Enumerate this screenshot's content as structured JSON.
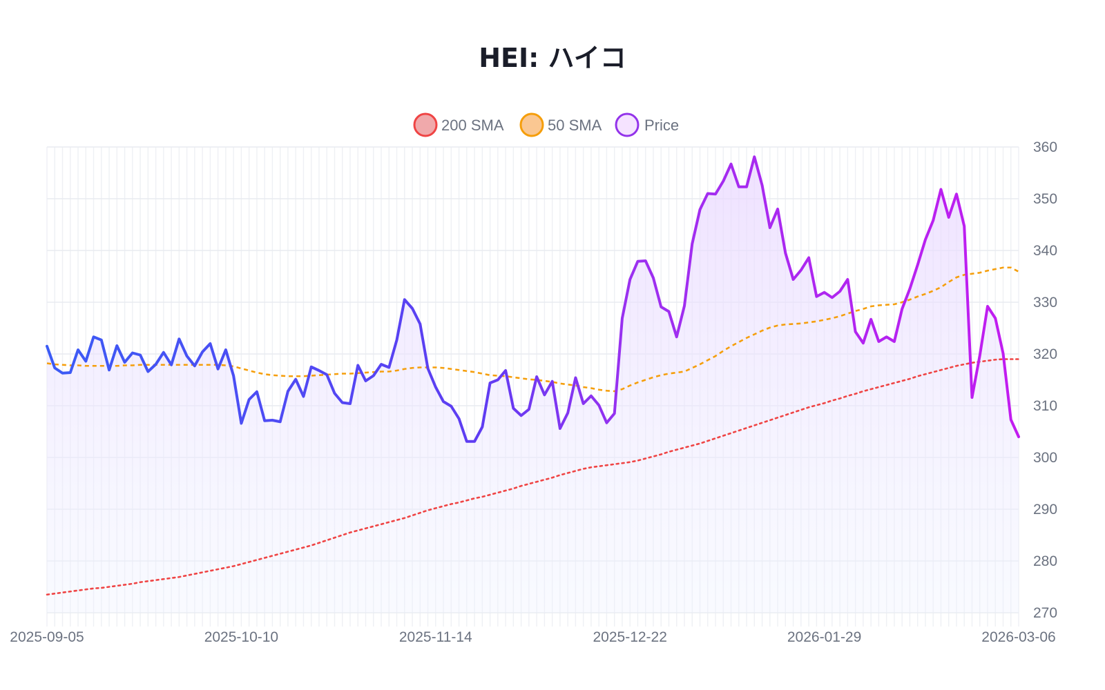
{
  "chart_data": {
    "type": "line",
    "title": "HEI: ハイコ",
    "xlabel": "",
    "ylabel": "",
    "ylim": [
      270,
      360
    ],
    "y_ticks": [
      270,
      280,
      290,
      300,
      310,
      320,
      330,
      340,
      350,
      360
    ],
    "x_tick_labels": [
      "2025-09-05",
      "2025-10-10",
      "2025-11-14",
      "2025-12-22",
      "2026-01-29",
      "2026-03-06"
    ],
    "grid": true,
    "legend_position": "top-center",
    "legend": [
      {
        "label": "200 SMA",
        "color": "#ef4444"
      },
      {
        "label": "50 SMA",
        "color": "#f59e0b"
      },
      {
        "label": "Price",
        "color": "#9333ea"
      }
    ],
    "series": [
      {
        "name": "Price",
        "color_start": "#3b5bf5",
        "color_end": "#c21cf0",
        "values": [
          321.5,
          317.3,
          316.3,
          316.4,
          320.8,
          318.6,
          323.3,
          322.7,
          316.9,
          321.6,
          318.4,
          320.2,
          319.8,
          316.6,
          318.0,
          320.3,
          317.9,
          322.9,
          319.6,
          317.7,
          320.4,
          322.0,
          317.1,
          320.8,
          315.8,
          306.6,
          311.2,
          312.7,
          307.1,
          307.2,
          306.9,
          312.8,
          315.1,
          311.8,
          317.5,
          316.8,
          316.0,
          312.4,
          310.6,
          310.4,
          317.8,
          314.8,
          315.8,
          318.0,
          317.4,
          322.7,
          330.5,
          328.8,
          325.8,
          317.2,
          313.6,
          310.8,
          309.9,
          307.5,
          303.1,
          303.1,
          305.9,
          314.4,
          315.0,
          316.8,
          309.5,
          308.1,
          309.3,
          315.6,
          312.1,
          314.7,
          305.6,
          308.6,
          315.4,
          310.4,
          311.9,
          310.1,
          306.7,
          308.5,
          326.9,
          334.4,
          337.9,
          338.0,
          334.7,
          329.1,
          328.2,
          323.3,
          329.3,
          341.3,
          347.9,
          351.0,
          350.9,
          353.4,
          356.7,
          352.3,
          352.3,
          358.1,
          352.6,
          344.4,
          348.0,
          339.5,
          334.4,
          336.2,
          338.6,
          331.1,
          331.9,
          330.9,
          332.1,
          334.4,
          324.3,
          322.1,
          326.7,
          322.4,
          323.3,
          322.4,
          328.7,
          332.6,
          337.2,
          342.1,
          345.8,
          351.8,
          346.4,
          350.9,
          344.7,
          311.6,
          319.7,
          329.2,
          326.9,
          320.1,
          307.3,
          304.0
        ]
      },
      {
        "name": "50 SMA",
        "color": "#f59e0b",
        "values": [
          318.2,
          318.0,
          317.9,
          317.8,
          317.8,
          317.7,
          317.7,
          317.7,
          317.7,
          317.7,
          317.8,
          317.8,
          317.9,
          317.9,
          317.9,
          317.9,
          317.9,
          317.9,
          317.9,
          317.9,
          317.9,
          317.9,
          317.9,
          317.8,
          317.6,
          317.2,
          316.8,
          316.4,
          316.1,
          315.9,
          315.8,
          315.7,
          315.7,
          315.7,
          315.8,
          315.9,
          316.0,
          316.1,
          316.2,
          316.2,
          316.3,
          316.4,
          316.5,
          316.6,
          316.6,
          316.8,
          317.1,
          317.3,
          317.4,
          317.4,
          317.4,
          317.3,
          317.1,
          316.9,
          316.7,
          316.5,
          316.2,
          315.9,
          315.8,
          315.7,
          315.5,
          315.3,
          315.1,
          315.0,
          314.8,
          314.6,
          314.3,
          314.1,
          313.9,
          313.6,
          313.4,
          313.1,
          312.9,
          312.8,
          313.2,
          313.9,
          314.5,
          315.0,
          315.5,
          315.9,
          316.2,
          316.4,
          316.6,
          317.3,
          318.0,
          318.8,
          319.6,
          320.6,
          321.5,
          322.3,
          323.1,
          323.8,
          324.5,
          325.1,
          325.5,
          325.7,
          325.8,
          325.9,
          326.1,
          326.3,
          326.6,
          326.9,
          327.3,
          327.8,
          328.3,
          328.7,
          329.2,
          329.4,
          329.5,
          329.6,
          330.0,
          330.5,
          331.1,
          331.6,
          332.2,
          332.9,
          333.9,
          334.8,
          335.3,
          335.5,
          335.7,
          336.1,
          336.4,
          336.7,
          336.7,
          335.9
        ]
      },
      {
        "name": "200 SMA",
        "color": "#ef4444",
        "values": [
          273.5,
          273.7,
          273.9,
          274.1,
          274.3,
          274.5,
          274.7,
          274.8,
          275.0,
          275.2,
          275.4,
          275.6,
          275.9,
          276.1,
          276.3,
          276.5,
          276.7,
          276.9,
          277.2,
          277.5,
          277.8,
          278.1,
          278.4,
          278.7,
          279.0,
          279.4,
          279.8,
          280.2,
          280.6,
          281.0,
          281.4,
          281.8,
          282.2,
          282.6,
          283.0,
          283.5,
          284.0,
          284.5,
          285.0,
          285.5,
          285.9,
          286.3,
          286.7,
          287.1,
          287.5,
          287.9,
          288.3,
          288.8,
          289.3,
          289.8,
          290.2,
          290.6,
          291.0,
          291.3,
          291.7,
          292.1,
          292.4,
          292.8,
          293.2,
          293.6,
          294.0,
          294.5,
          294.9,
          295.3,
          295.7,
          296.1,
          296.6,
          297.0,
          297.4,
          297.8,
          298.1,
          298.3,
          298.5,
          298.7,
          298.9,
          299.1,
          299.4,
          299.8,
          300.2,
          300.6,
          301.1,
          301.5,
          301.9,
          302.3,
          302.7,
          303.2,
          303.7,
          304.2,
          304.7,
          305.2,
          305.7,
          306.2,
          306.7,
          307.2,
          307.7,
          308.2,
          308.7,
          309.2,
          309.7,
          310.1,
          310.5,
          311.0,
          311.4,
          311.9,
          312.3,
          312.8,
          313.2,
          313.6,
          314.0,
          314.4,
          314.8,
          315.2,
          315.7,
          316.1,
          316.5,
          316.9,
          317.3,
          317.7,
          318.0,
          318.3,
          318.5,
          318.7,
          318.9,
          319.0,
          319.0,
          319.0
        ]
      }
    ]
  }
}
